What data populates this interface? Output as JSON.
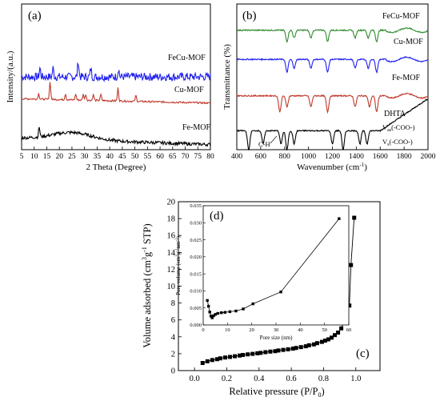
{
  "chart_data": [
    {
      "panel": "(a)",
      "type": "line",
      "xlabel": "2 Theta (Degree)",
      "ylabel": "Intensity/(a.u.)",
      "xlim": [
        5,
        80
      ],
      "xticks": [
        "5",
        "10",
        "15",
        "20",
        "25",
        "30",
        "35",
        "40",
        "45",
        "50",
        "55",
        "60",
        "65",
        "70",
        "75",
        "80"
      ],
      "series": [
        {
          "name": "FeCu-MOF",
          "color": "#1e1ef0",
          "peaks": [
            12.3,
            17.5,
            27.5,
            32.5,
            43.5
          ],
          "baseline": 0.5
        },
        {
          "name": "Cu-MOF",
          "color": "#c0392b",
          "peaks": [
            11.8,
            16.3,
            22.4,
            26.5,
            29.5,
            30.5,
            33.5,
            36.5,
            43.3,
            50.4
          ],
          "baseline": 0.35
        },
        {
          "name": "Fe-MOF",
          "color": "#000000",
          "peaks": [
            12.0
          ],
          "baseline": 0.08
        }
      ]
    },
    {
      "panel": "(b)",
      "type": "line",
      "xlabel": "Wavenumber (cm",
      "xlabel_sup": "-1",
      "xlabel_end": ")",
      "ylabel": "Transmittance (%)",
      "xlim": [
        400,
        2000
      ],
      "xticks": [
        "400",
        "600",
        "800",
        "1000",
        "1200",
        "1400",
        "1600",
        "1800",
        "2000"
      ],
      "series": [
        {
          "name": "FeCu-MOF",
          "color": "#2e8b2e",
          "dips": [
            820,
            880,
            1020,
            1160,
            1390,
            1500,
            1570
          ]
        },
        {
          "name": "Cu-MOF",
          "color": "#1e1ef0",
          "dips": [
            820,
            880,
            1020,
            1160,
            1390,
            1500,
            1570
          ]
        },
        {
          "name": "Fe-MOF",
          "color": "#c0392b",
          "dips": [
            760,
            820,
            1020,
            1160,
            1390,
            1510,
            1570
          ]
        },
        {
          "name": "DHTA",
          "color": "#000000",
          "dips": [
            500,
            620,
            770,
            820,
            880,
            1200,
            1290,
            1430,
            1490
          ]
        }
      ],
      "annotations": [
        {
          "text": "C-H"
        },
        {
          "text": "V",
          "sub": "as",
          "tail": "(-COO-)"
        },
        {
          "text": "V",
          "sub": "s",
          "tail": "(-COO-)"
        }
      ]
    },
    {
      "panel": "(c)",
      "type": "scatter",
      "xlabel": "Relative pressure (P/P",
      "xlabel_sub": "0",
      "xlabel_end": ")",
      "ylabel": "Volume adsorbed (cm",
      "ylabel_sup": "3",
      "ylabel_mid": "g",
      "ylabel_sup2": "-1",
      "ylabel_end": " STP)",
      "xlim": [
        -0.1,
        1.15
      ],
      "ylim": [
        0,
        20
      ],
      "xticks": [
        "0.0",
        "0.2",
        "0.4",
        "0.6",
        "0.8",
        "1.0"
      ],
      "yticks": [
        "0",
        "2",
        "4",
        "6",
        "8",
        "10",
        "12",
        "14",
        "16",
        "18",
        "20"
      ],
      "x": [
        0.05,
        0.08,
        0.11,
        0.14,
        0.16,
        0.19,
        0.22,
        0.25,
        0.28,
        0.3,
        0.33,
        0.36,
        0.39,
        0.41,
        0.44,
        0.47,
        0.5,
        0.52,
        0.55,
        0.58,
        0.61,
        0.63,
        0.66,
        0.69,
        0.71,
        0.74,
        0.76,
        0.79,
        0.81,
        0.83,
        0.85,
        0.87,
        0.89,
        0.91,
        0.93,
        0.94,
        0.96,
        0.97,
        0.99
      ],
      "y": [
        0.9,
        1.1,
        1.25,
        1.35,
        1.45,
        1.55,
        1.62,
        1.7,
        1.78,
        1.85,
        1.92,
        1.98,
        2.05,
        2.1,
        2.18,
        2.25,
        2.3,
        2.38,
        2.45,
        2.52,
        2.6,
        2.68,
        2.78,
        2.88,
        3.0,
        3.1,
        3.25,
        3.4,
        3.55,
        3.7,
        3.9,
        4.2,
        4.5,
        5.0,
        5.9,
        6.8,
        7.7,
        12.5,
        18.1
      ]
    },
    {
      "panel": "(d)",
      "type": "line",
      "inset_of": "(c)",
      "xlabel": "Pore size (nm)",
      "ylabel": "Pore volume (cm",
      "ylabel_sup": "3",
      "ylabel_mid": "g",
      "ylabel_sup2": "-1",
      "ylabel_mid2": "nm",
      "ylabel_sup3": "-1",
      "ylabel_end": ")",
      "xlim": [
        0,
        60
      ],
      "ylim": [
        0,
        0.035
      ],
      "xticks": [
        "0",
        "10",
        "20",
        "30",
        "40",
        "50",
        "60"
      ],
      "yticks": [
        "0.000",
        "0.005",
        "0.010",
        "0.015",
        "0.020",
        "0.025",
        "0.030",
        "0.035"
      ],
      "x": [
        1.7,
        2.2,
        2.7,
        3.2,
        3.7,
        4.3,
        5.0,
        6.0,
        7.5,
        9,
        11,
        13.5,
        16.5,
        20.5,
        32,
        56
      ],
      "y": [
        0.0072,
        0.0055,
        0.0038,
        0.0026,
        0.0021,
        0.0027,
        0.0031,
        0.0034,
        0.0036,
        0.0037,
        0.0039,
        0.0041,
        0.0047,
        0.0062,
        0.0097,
        0.0312
      ]
    }
  ]
}
